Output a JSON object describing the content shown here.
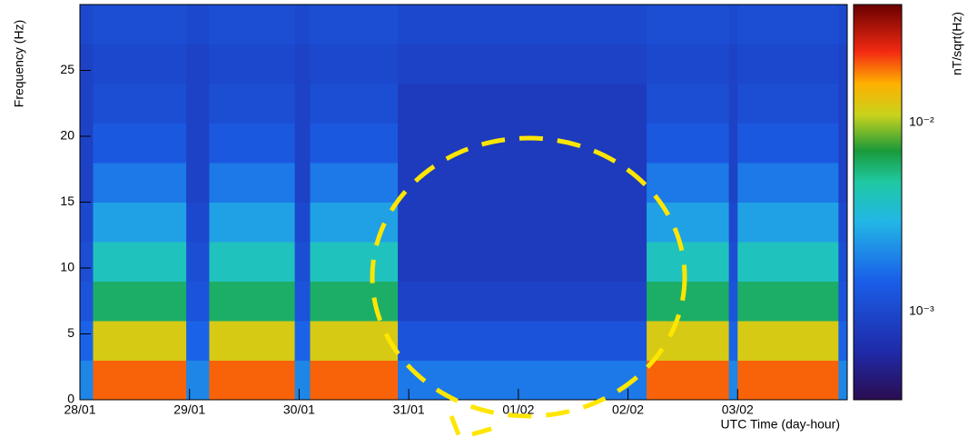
{
  "chart_data": {
    "type": "heatmap",
    "xlabel": "UTC Time (day-hour)",
    "ylabel": "Frequency (Hz)",
    "colorbar_label": "nT/sqrt(Hz)",
    "x": [
      0,
      0.12,
      0.97,
      1.18,
      1.96,
      2.1,
      2.9,
      5.17,
      5.92,
      6.0,
      6.92,
      7
    ],
    "y": [
      0,
      3,
      6,
      9,
      12,
      15,
      18,
      21,
      24,
      27,
      30
    ],
    "z": [
      [
        0.002,
        0.02,
        0.002,
        0.02,
        0.002,
        0.02,
        0.0018,
        0.02,
        0.002,
        0.02,
        0.002
      ],
      [
        0.0015,
        0.012,
        0.0015,
        0.012,
        0.0015,
        0.012,
        0.0012,
        0.012,
        0.0015,
        0.012,
        0.0015
      ],
      [
        0.0012,
        0.006,
        0.0012,
        0.006,
        0.0012,
        0.006,
        0.0009,
        0.006,
        0.0012,
        0.006,
        0.0012
      ],
      [
        0.0011,
        0.004,
        0.0011,
        0.004,
        0.0011,
        0.004,
        0.0008,
        0.004,
        0.0011,
        0.004,
        0.0011
      ],
      [
        0.001,
        0.0025,
        0.001,
        0.0025,
        0.001,
        0.0025,
        0.0008,
        0.0025,
        0.001,
        0.0025,
        0.001
      ],
      [
        0.0009,
        0.0018,
        0.0009,
        0.0018,
        0.0009,
        0.0018,
        0.0008,
        0.0018,
        0.0009,
        0.0018,
        0.0009
      ],
      [
        0.0009,
        0.0013,
        0.0009,
        0.0013,
        0.0009,
        0.0013,
        0.0008,
        0.0013,
        0.0009,
        0.0013,
        0.0009
      ],
      [
        0.0009,
        0.0011,
        0.0009,
        0.0011,
        0.0009,
        0.0011,
        0.0008,
        0.0011,
        0.0009,
        0.0011,
        0.0009
      ],
      [
        0.0009,
        0.001,
        0.0009,
        0.001,
        0.0009,
        0.001,
        0.0009,
        0.001,
        0.0009,
        0.001,
        0.0009
      ],
      [
        0.001,
        0.0011,
        0.001,
        0.0011,
        0.001,
        0.0011,
        0.001,
        0.0011,
        0.001,
        0.0011,
        0.001
      ]
    ],
    "xlim": [
      0,
      7
    ],
    "ylim": [
      0,
      30
    ],
    "xticks": [
      {
        "value": 0,
        "label": "28/01"
      },
      {
        "value": 1,
        "label": "29/01"
      },
      {
        "value": 2,
        "label": "30/01"
      },
      {
        "value": 3,
        "label": "31/01"
      },
      {
        "value": 4,
        "label": "01/02"
      },
      {
        "value": 5,
        "label": "02/02"
      },
      {
        "value": 6,
        "label": "03/02"
      }
    ],
    "yticks": [
      0,
      5,
      10,
      15,
      20,
      25
    ],
    "zlim": [
      0.00034,
      0.042
    ],
    "zscale": "log",
    "zticks": [
      {
        "value": 0.001,
        "label": "10⁻³"
      },
      {
        "value": 0.01,
        "label": "10⁻²"
      }
    ]
  }
}
